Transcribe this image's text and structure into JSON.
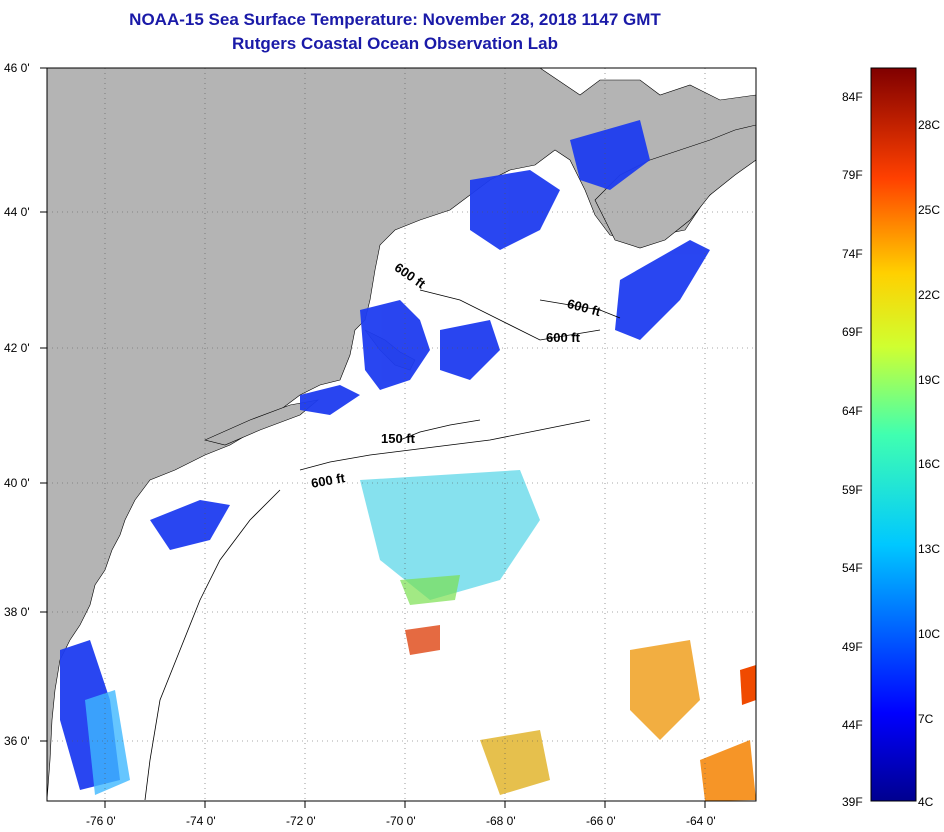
{
  "title": {
    "line1": "NOAA-15 Sea Surface Temperature:  November 28, 2018 1147 GMT",
    "line2": "Rutgers Coastal Ocean Observation Lab"
  },
  "map": {
    "lat_labels": [
      "46 0'",
      "44 0'",
      "42 0'",
      "40 0'",
      "38 0'",
      "36 0'"
    ],
    "lon_labels": [
      "-76 0'",
      "-74 0'",
      "-72 0'",
      "-70 0'",
      "-68 0'",
      "-66 0'",
      "-64 0'"
    ],
    "contour_labels": [
      "600 ft",
      "600 ft",
      "600 ft",
      "150 ft",
      "600 ft"
    ],
    "colors": {
      "land": "#b4b4b4",
      "ocean": "#ffffff",
      "cold_water": "#1e3cf0"
    }
  },
  "colorbar": {
    "fahrenheit": [
      "84F",
      "79F",
      "74F",
      "69F",
      "64F",
      "59F",
      "54F",
      "49F",
      "44F",
      "39F"
    ],
    "celsius": [
      "28C",
      "25C",
      "22C",
      "19C",
      "16C",
      "13C",
      "10C",
      "7C",
      "4C"
    ]
  }
}
